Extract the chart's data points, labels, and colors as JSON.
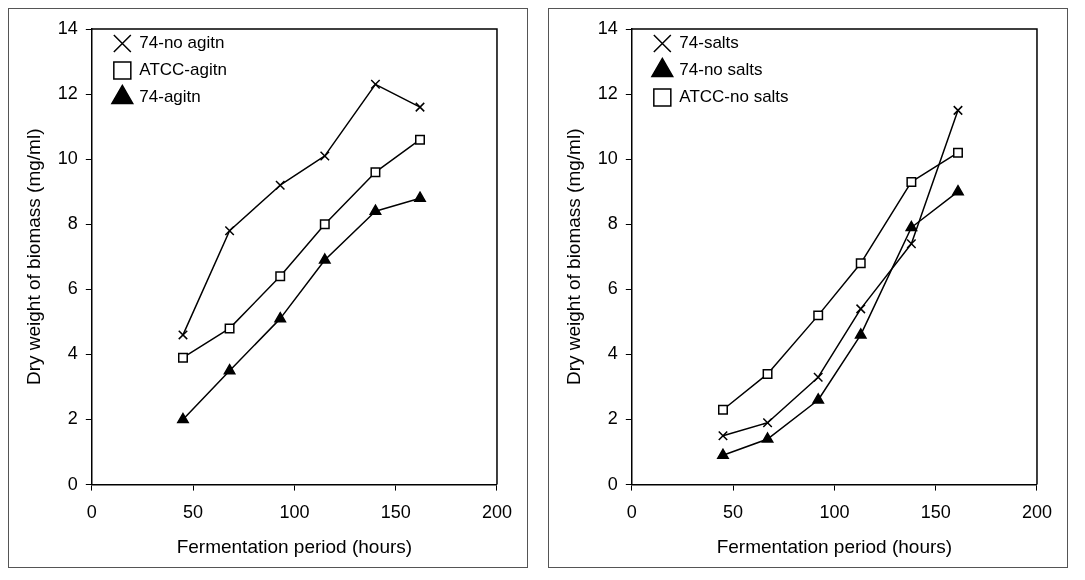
{
  "chart_data": [
    {
      "type": "line",
      "xlabel": "Fermentation period (hours)",
      "ylabel": "Dry weight of biomass (mg/ml)",
      "xlim": [
        0,
        200
      ],
      "xticks": [
        0,
        50,
        100,
        150,
        200
      ],
      "ylim": [
        0,
        14
      ],
      "yticks": [
        0,
        2,
        4,
        6,
        8,
        10,
        12,
        14
      ],
      "grid": false,
      "legend": "top left",
      "line_style": "solid",
      "series": [
        {
          "name": "74-no agitn",
          "color": "#000000",
          "marker": "cross",
          "x": [
            45,
            68,
            93,
            115,
            140,
            162
          ],
          "values": [
            4.6,
            7.8,
            9.2,
            10.1,
            12.3,
            11.6
          ]
        },
        {
          "name": "ATCC-agitn",
          "color": "#000000",
          "marker": "square",
          "x": [
            45,
            68,
            93,
            115,
            140,
            162
          ],
          "values": [
            3.9,
            4.8,
            6.4,
            8.0,
            9.6,
            10.6
          ]
        },
        {
          "name": "74-agitn",
          "color": "#000000",
          "marker": "triangle",
          "x": [
            45,
            68,
            93,
            115,
            140,
            162
          ],
          "values": [
            2.0,
            3.5,
            5.1,
            6.9,
            8.4,
            8.8
          ]
        }
      ]
    },
    {
      "type": "line",
      "xlabel": "Fermentation period (hours)",
      "ylabel": "Dry weight of biomass (mg/ml)",
      "xlim": [
        0,
        200
      ],
      "xticks": [
        0,
        50,
        100,
        150,
        200
      ],
      "ylim": [
        0,
        14
      ],
      "yticks": [
        0,
        2,
        4,
        6,
        8,
        10,
        12,
        14
      ],
      "grid": false,
      "legend": "top left",
      "line_style": "solid",
      "series": [
        {
          "name": "74-salts",
          "color": "#000000",
          "marker": "cross",
          "x": [
            45,
            67,
            92,
            113,
            138,
            161
          ],
          "values": [
            1.5,
            1.9,
            3.3,
            5.4,
            7.4,
            11.5
          ]
        },
        {
          "name": "74-no salts",
          "color": "#000000",
          "marker": "triangle",
          "x": [
            45,
            67,
            92,
            113,
            138,
            161
          ],
          "values": [
            0.9,
            1.4,
            2.6,
            4.6,
            7.9,
            9.0
          ]
        },
        {
          "name": "ATCC-no salts",
          "color": "#000000",
          "marker": "square",
          "x": [
            45,
            67,
            92,
            113,
            138,
            161
          ],
          "values": [
            2.3,
            3.4,
            5.2,
            6.8,
            9.3,
            10.2
          ]
        }
      ]
    }
  ]
}
